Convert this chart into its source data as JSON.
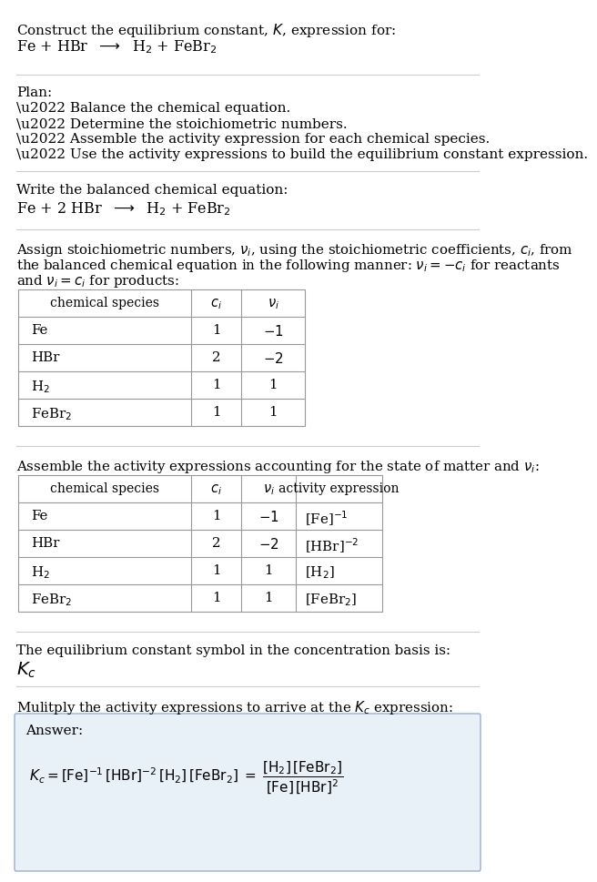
{
  "bg_color": "#ffffff",
  "sep_color": "#cccccc",
  "table_color": "#999999",
  "ans_bg": "#e8f0f8",
  "ans_border": "#9aafcc",
  "section1": {
    "line1": "Construct the equilibrium constant, $\\mathit{K}$, expression for:",
    "line2": "Fe + HBr  $\\longrightarrow$  H$_2$ + FeBr$_2$"
  },
  "section2": {
    "header": "Plan:",
    "items": [
      "\\u2022 Balance the chemical equation.",
      "\\u2022 Determine the stoichiometric numbers.",
      "\\u2022 Assemble the activity expression for each chemical species.",
      "\\u2022 Use the activity expressions to build the equilibrium constant expression."
    ]
  },
  "section3": {
    "header": "Write the balanced chemical equation:",
    "equation": "Fe + 2 HBr  $\\longrightarrow$  H$_2$ + FeBr$_2$"
  },
  "section4": {
    "text1": "Assign stoichiometric numbers, $\\nu_i$, using the stoichiometric coefficients, $c_i$, from",
    "text2": "the balanced chemical equation in the following manner: $\\nu_i = -c_i$ for reactants",
    "text3": "and $\\nu_i = c_i$ for products:",
    "table_headers": [
      "chemical species",
      "$c_i$",
      "$\\nu_i$"
    ],
    "table_rows": [
      [
        "Fe",
        "1",
        "$-1$"
      ],
      [
        "HBr",
        "2",
        "$-2$"
      ],
      [
        "H$_2$",
        "1",
        "1"
      ],
      [
        "FeBr$_2$",
        "1",
        "1"
      ]
    ]
  },
  "section5": {
    "header": "Assemble the activity expressions accounting for the state of matter and $\\nu_i$:",
    "table_headers": [
      "chemical species",
      "$c_i$",
      "$\\nu_i$",
      "activity expression"
    ],
    "table_rows": [
      [
        "Fe",
        "1",
        "$-1$",
        "[Fe]$^{-1}$"
      ],
      [
        "HBr",
        "2",
        "$-2$",
        "[HBr]$^{-2}$"
      ],
      [
        "H$_2$",
        "1",
        "1",
        "[H$_2$]"
      ],
      [
        "FeBr$_2$",
        "1",
        "1",
        "[FeBr$_2$]"
      ]
    ]
  },
  "section6": {
    "header": "The equilibrium constant symbol in the concentration basis is:",
    "symbol": "$K_c$"
  },
  "section7": {
    "header": "Mulitply the activity expressions to arrive at the $K_c$ expression:",
    "answer_label": "Answer:"
  }
}
